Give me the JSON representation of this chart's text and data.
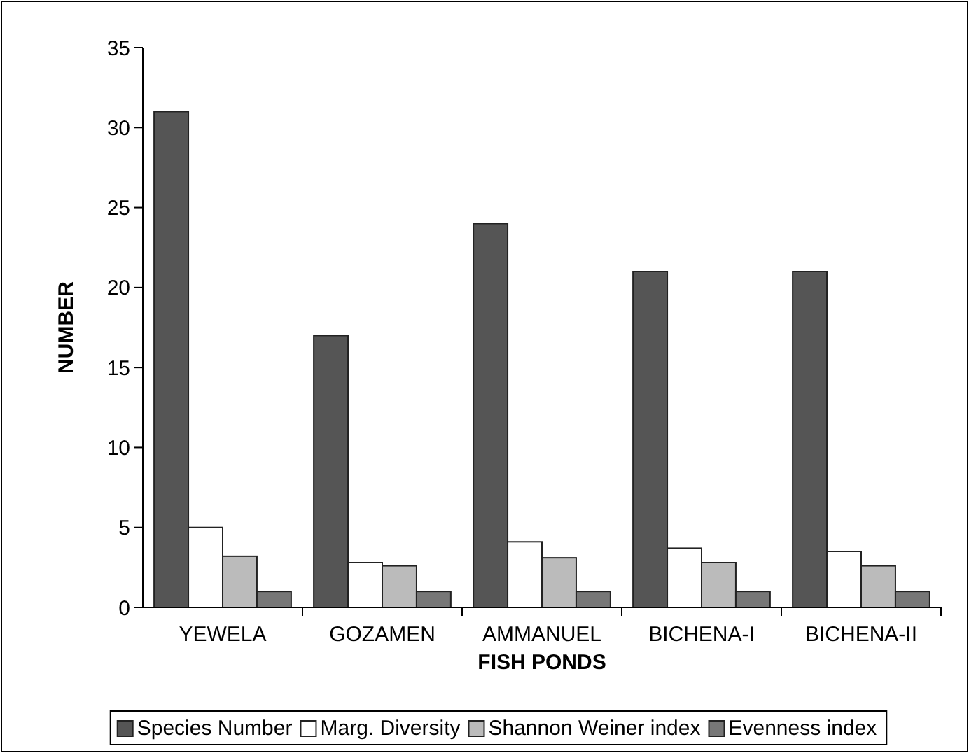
{
  "chart_data": {
    "type": "bar",
    "xlabel": "FISH PONDS",
    "ylabel": "NUMBER",
    "categories": [
      "YEWELA",
      "GOZAMEN",
      "AMMANUEL",
      "BICHENA-I",
      "BICHENA-II"
    ],
    "series": [
      {
        "name": "Species Number",
        "color": "#555555",
        "values": [
          31,
          17,
          24,
          21,
          21
        ]
      },
      {
        "name": "Marg. Diversity",
        "color": "#ffffff",
        "values": [
          5,
          2.8,
          4.1,
          3.7,
          3.5
        ]
      },
      {
        "name": "Shannon Weiner index",
        "color": "#bbbbbb",
        "values": [
          3.2,
          2.6,
          3.1,
          2.8,
          2.6
        ]
      },
      {
        "name": "Evenness index",
        "color": "#777777",
        "values": [
          1,
          1,
          1,
          1,
          1
        ]
      }
    ],
    "ylim": [
      0,
      35
    ],
    "yticks": [
      0,
      5,
      10,
      15,
      20,
      25,
      30,
      35
    ],
    "legend": "bottom",
    "grid": false
  }
}
